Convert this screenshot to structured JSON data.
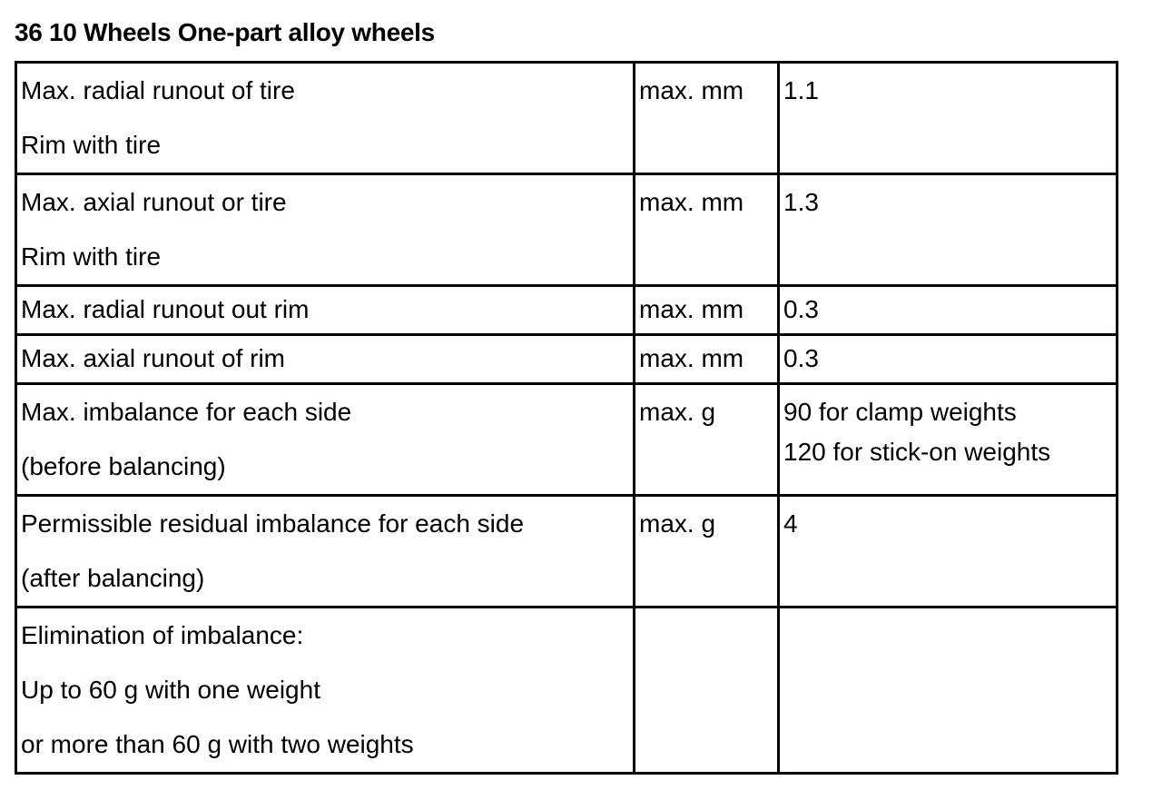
{
  "title": "36 10 Wheels One-part alloy wheels",
  "rows": [
    {
      "desc": [
        "Max. radial runout of tire",
        "Rim with tire"
      ],
      "unit": "max. mm",
      "value": [
        "1.1"
      ]
    },
    {
      "desc": [
        "Max. axial runout or tire",
        "Rim with tire"
      ],
      "unit": "max. mm",
      "value": [
        "1.3"
      ]
    },
    {
      "desc": [
        "Max. radial runout out rim"
      ],
      "unit": "max. mm",
      "value": [
        "0.3"
      ]
    },
    {
      "desc": [
        "Max. axial runout of rim"
      ],
      "unit": "max. mm",
      "value": [
        "0.3"
      ]
    },
    {
      "desc": [
        "Max. imbalance for each side",
        "(before balancing)"
      ],
      "unit": "max. g",
      "value": [
        "90 for clamp weights",
        "120 for stick-on weights"
      ]
    },
    {
      "desc": [
        "Permissible residual imbalance for each side",
        "(after balancing)"
      ],
      "unit": "max. g",
      "value": [
        "4"
      ]
    },
    {
      "desc": [
        "Elimination of imbalance:",
        "Up to 60 g with one weight",
        "or more than 60 g with two weights"
      ],
      "unit": "",
      "value": []
    }
  ]
}
